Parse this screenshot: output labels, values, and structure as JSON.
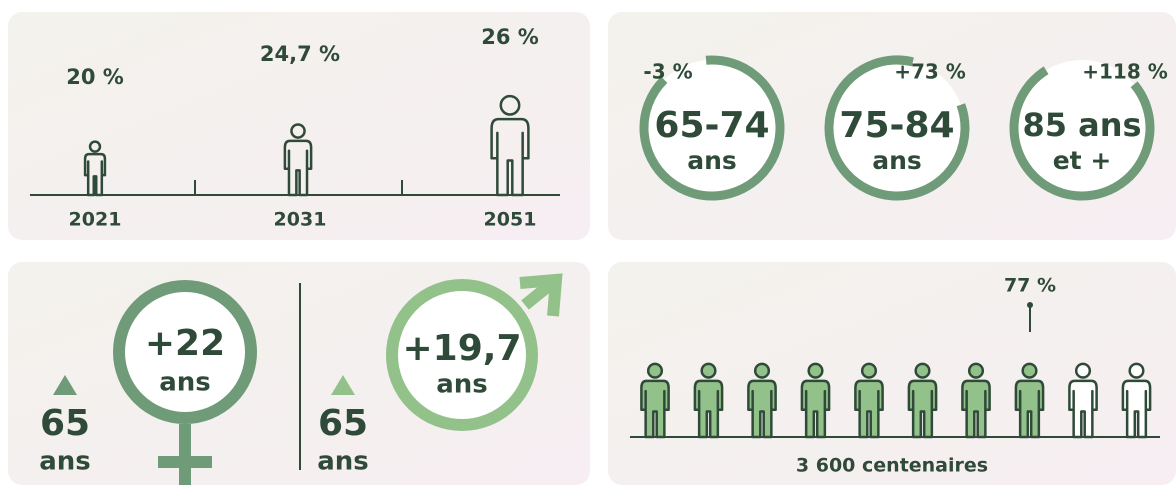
{
  "share_panel": {
    "points": [
      {
        "value_label": "20 %",
        "year": "2021"
      },
      {
        "value_label": "24,7 %",
        "year": "2031"
      },
      {
        "value_label": "26 %",
        "year": "2051"
      }
    ]
  },
  "age_groups": [
    {
      "change": "-3 %",
      "label": "65-74",
      "unit": "ans"
    },
    {
      "change": "+73 %",
      "label": "75-84",
      "unit": "ans"
    },
    {
      "change": "+118 %",
      "label": "85 ans",
      "unit": "et +"
    }
  ],
  "life_expectancy": {
    "female": {
      "gain": "+22",
      "gain_unit": "ans",
      "age": "65",
      "age_unit": "ans"
    },
    "male": {
      "gain": "+19,7",
      "gain_unit": "ans",
      "age": "65",
      "age_unit": "ans"
    }
  },
  "centenarians": {
    "share": "77 %",
    "caption": "3 600 centenaires"
  }
}
